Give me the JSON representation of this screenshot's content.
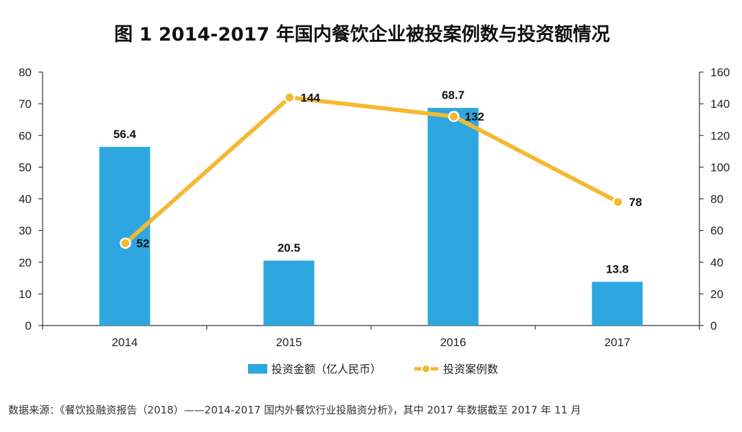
{
  "chart_data": {
    "type": "bar",
    "title": "图 1   2014-2017 年国内餐饮企业被投案例数与投资额情况",
    "categories": [
      "2014",
      "2015",
      "2016",
      "2017"
    ],
    "series": [
      {
        "name": "投资金额（亿人民币）",
        "type": "bar",
        "axis": "left",
        "values": [
          56.4,
          20.5,
          68.7,
          13.8
        ],
        "color": "#2ea7e0"
      },
      {
        "name": "投资案例数",
        "type": "line",
        "axis": "right",
        "values": [
          52,
          144,
          132,
          78
        ],
        "color": "#f5b931"
      }
    ],
    "y_left": {
      "range": [
        0,
        80
      ],
      "ticks": [
        "0",
        "10",
        "20",
        "30",
        "40",
        "50",
        "60",
        "70",
        "80"
      ]
    },
    "y_right": {
      "range": [
        0,
        160
      ],
      "ticks": [
        "0",
        "20",
        "40",
        "60",
        "80",
        "100",
        "120",
        "140",
        "160"
      ]
    },
    "grid": false,
    "legend_position": "bottom"
  },
  "source_note": "数据来源：《餐饮投融资报告（2018）——2014-2017 国内外餐饮行业投融资分析》，其中 2017 年数据截至 2017 年 11 月"
}
